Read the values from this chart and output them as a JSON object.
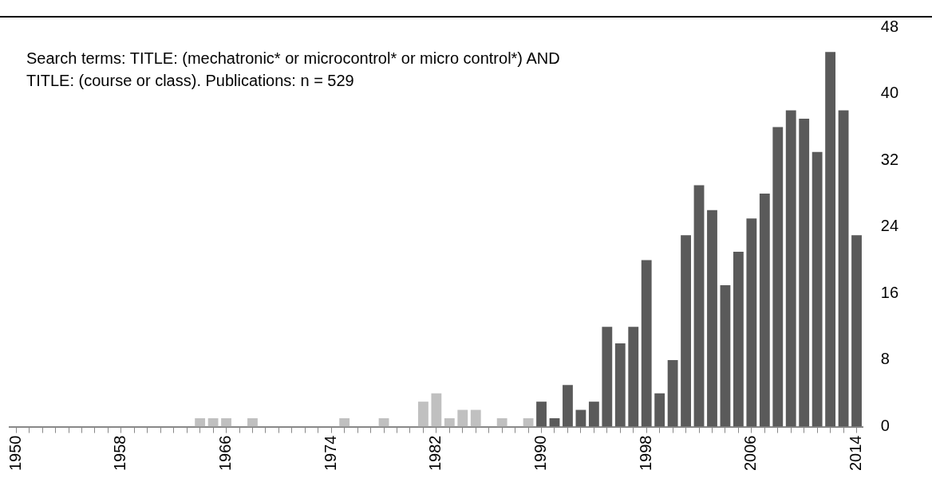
{
  "chart_data": {
    "type": "bar",
    "categories": [
      "1950",
      null,
      null,
      null,
      null,
      null,
      null,
      null,
      "1958",
      null,
      null,
      null,
      null,
      null,
      null,
      null,
      "1966",
      null,
      null,
      null,
      null,
      null,
      null,
      null,
      "1974",
      null,
      null,
      null,
      null,
      null,
      null,
      null,
      "1982",
      null,
      null,
      null,
      null,
      null,
      null,
      null,
      "1990",
      null,
      null,
      null,
      null,
      null,
      null,
      null,
      "1998",
      null,
      null,
      null,
      null,
      null,
      null,
      null,
      "2006",
      null,
      null,
      null,
      null,
      null,
      null,
      null,
      "2014"
    ],
    "values": [
      0,
      0,
      0,
      0,
      0,
      0,
      0,
      0,
      0,
      0,
      0,
      0,
      0,
      0,
      1,
      1,
      1,
      0,
      1,
      0,
      0,
      0,
      0,
      0,
      0,
      1,
      0,
      0,
      1,
      0,
      0,
      3,
      4,
      1,
      2,
      2,
      0,
      1,
      0,
      1,
      3,
      1,
      5,
      2,
      3,
      12,
      10,
      12,
      20,
      4,
      8,
      23,
      29,
      26,
      17,
      21,
      25,
      28,
      36,
      38,
      37,
      33,
      45,
      38,
      23
    ],
    "colors": [
      "#c0c0c0",
      "#c0c0c0",
      "#c0c0c0",
      "#c0c0c0",
      "#c0c0c0",
      "#c0c0c0",
      "#c0c0c0",
      "#c0c0c0",
      "#c0c0c0",
      "#c0c0c0",
      "#c0c0c0",
      "#c0c0c0",
      "#c0c0c0",
      "#c0c0c0",
      "#c0c0c0",
      "#c0c0c0",
      "#c0c0c0",
      "#c0c0c0",
      "#c0c0c0",
      "#c0c0c0",
      "#c0c0c0",
      "#c0c0c0",
      "#c0c0c0",
      "#c0c0c0",
      "#c0c0c0",
      "#c0c0c0",
      "#c0c0c0",
      "#c0c0c0",
      "#c0c0c0",
      "#c0c0c0",
      "#c0c0c0",
      "#c0c0c0",
      "#c0c0c0",
      "#c0c0c0",
      "#c0c0c0",
      "#c0c0c0",
      "#c0c0c0",
      "#c0c0c0",
      "#c0c0c0",
      "#c0c0c0",
      "#5a5a5a",
      "#5a5a5a",
      "#5a5a5a",
      "#5a5a5a",
      "#5a5a5a",
      "#5a5a5a",
      "#5a5a5a",
      "#5a5a5a",
      "#5a5a5a",
      "#5a5a5a",
      "#5a5a5a",
      "#5a5a5a",
      "#5a5a5a",
      "#5a5a5a",
      "#5a5a5a",
      "#5a5a5a",
      "#5a5a5a",
      "#5a5a5a",
      "#5a5a5a",
      "#5a5a5a",
      "#5a5a5a",
      "#5a5a5a",
      "#5a5a5a",
      "#5a5a5a",
      "#5a5a5a"
    ],
    "ylim": [
      0,
      48
    ],
    "yticks": [
      0,
      8,
      16,
      24,
      32,
      40,
      48
    ],
    "grid": false,
    "legend": false,
    "annotations": [
      "Search terms: TITLE: (mechatronic* or microcontrol* or micro control*) AND",
      "TITLE: (course or class). Publications: n = 529"
    ]
  }
}
